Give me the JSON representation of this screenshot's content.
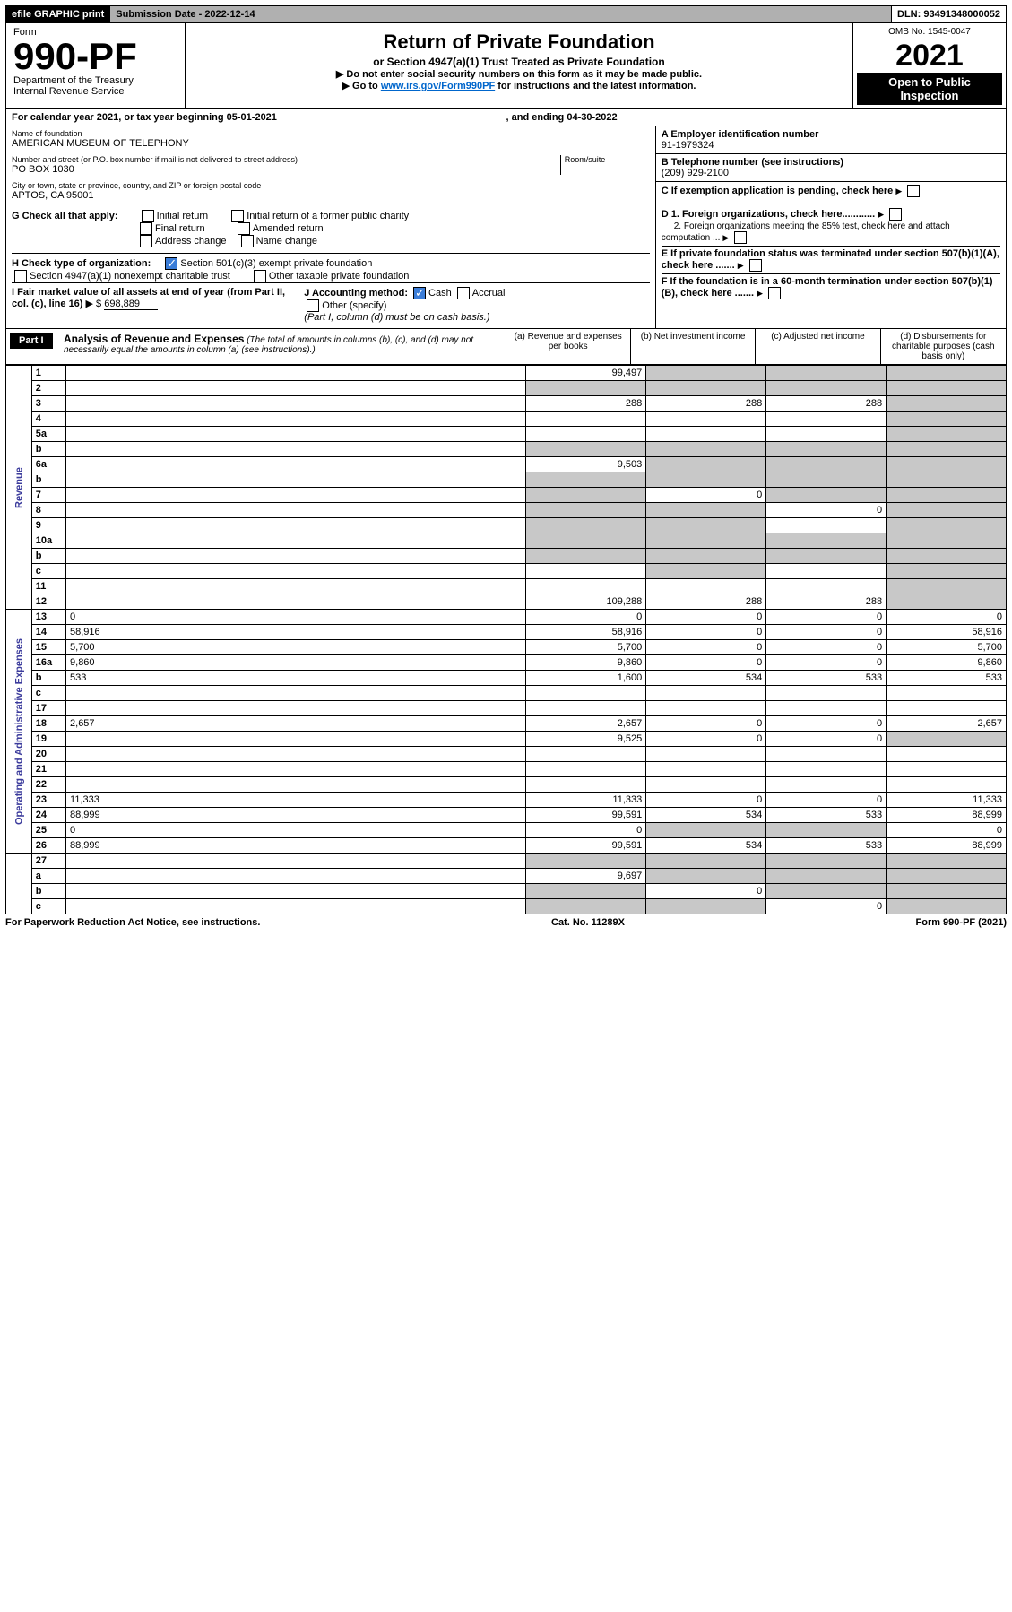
{
  "topbar": {
    "efile": "efile GRAPHIC print",
    "submission_label": "Submission Date - 2022-12-14",
    "dln": "DLN: 93491348000052"
  },
  "header": {
    "form_word": "Form",
    "form_no": "990-PF",
    "dept": "Department of the Treasury",
    "irs": "Internal Revenue Service",
    "title": "Return of Private Foundation",
    "subtitle": "or Section 4947(a)(1) Trust Treated as Private Foundation",
    "note1": "▶ Do not enter social security numbers on this form as it may be made public.",
    "note2_pre": "▶ Go to ",
    "note2_link": "www.irs.gov/Form990PF",
    "note2_post": " for instructions and the latest information.",
    "omb": "OMB No. 1545-0047",
    "year": "2021",
    "open": "Open to Public Inspection"
  },
  "calyear": {
    "text": "For calendar year 2021, or tax year beginning 05-01-2021",
    "ending": ", and ending 04-30-2022"
  },
  "ident": {
    "name_label": "Name of foundation",
    "name": "AMERICAN MUSEUM OF TELEPHONY",
    "addr_label": "Number and street (or P.O. box number if mail is not delivered to street address)",
    "addr": "PO BOX 1030",
    "room_label": "Room/suite",
    "city_label": "City or town, state or province, country, and ZIP or foreign postal code",
    "city": "APTOS, CA  95001",
    "a_label": "A Employer identification number",
    "a_val": "91-1979324",
    "b_label": "B Telephone number (see instructions)",
    "b_val": "(209) 929-2100",
    "c_label": "C If exemption application is pending, check here"
  },
  "g": {
    "label": "G Check all that apply:",
    "opts": [
      "Initial return",
      "Initial return of a former public charity",
      "Final return",
      "Amended return",
      "Address change",
      "Name change"
    ]
  },
  "h": {
    "label": "H Check type of organization:",
    "o1": "Section 501(c)(3) exempt private foundation",
    "o2": "Section 4947(a)(1) nonexempt charitable trust",
    "o3": "Other taxable private foundation"
  },
  "i": {
    "label": "I Fair market value of all assets at end of year (from Part II, col. (c), line 16)",
    "arrow": "▶ $",
    "val": "698,889"
  },
  "j": {
    "label": "J Accounting method:",
    "cash": "Cash",
    "accrual": "Accrual",
    "other": "Other (specify)",
    "note": "(Part I, column (d) must be on cash basis.)"
  },
  "right_notes": {
    "d1": "D 1. Foreign organizations, check here............",
    "d2": "2. Foreign organizations meeting the 85% test, check here and attach computation ...",
    "e": "E  If private foundation status was terminated under section 507(b)(1)(A), check here .......",
    "f": "F  If the foundation is in a 60-month termination under section 507(b)(1)(B), check here ......."
  },
  "part1": {
    "label": "Part I",
    "title": "Analysis of Revenue and Expenses",
    "title_note": "(The total of amounts in columns (b), (c), and (d) may not necessarily equal the amounts in column (a) (see instructions).)",
    "col_a": "(a)   Revenue and expenses per books",
    "col_b": "(b)   Net investment income",
    "col_c": "(c)   Adjusted net income",
    "col_d": "(d)   Disbursements for charitable purposes (cash basis only)"
  },
  "sections": {
    "rev": "Revenue",
    "exp": "Operating and Administrative Expenses"
  },
  "rows": [
    {
      "n": "1",
      "d": "",
      "a": "99,497",
      "b": "",
      "c": "",
      "grey": [
        "b",
        "c",
        "d"
      ]
    },
    {
      "n": "2",
      "d": "",
      "a": "",
      "b": "",
      "c": "",
      "grey": [
        "a",
        "b",
        "c",
        "d"
      ]
    },
    {
      "n": "3",
      "d": "",
      "a": "288",
      "b": "288",
      "c": "288",
      "grey": [
        "d"
      ]
    },
    {
      "n": "4",
      "d": "",
      "a": "",
      "b": "",
      "c": "",
      "grey": [
        "d"
      ]
    },
    {
      "n": "5a",
      "d": "",
      "a": "",
      "b": "",
      "c": "",
      "grey": [
        "d"
      ]
    },
    {
      "n": "b",
      "d": "",
      "a": "",
      "b": "",
      "c": "",
      "grey": [
        "a",
        "b",
        "c",
        "d"
      ]
    },
    {
      "n": "6a",
      "d": "",
      "a": "9,503",
      "b": "",
      "c": "",
      "grey": [
        "b",
        "c",
        "d"
      ]
    },
    {
      "n": "b",
      "d": "",
      "a": "",
      "b": "",
      "c": "",
      "grey": [
        "a",
        "b",
        "c",
        "d"
      ]
    },
    {
      "n": "7",
      "d": "",
      "a": "",
      "b": "0",
      "c": "",
      "grey": [
        "a",
        "c",
        "d"
      ]
    },
    {
      "n": "8",
      "d": "",
      "a": "",
      "b": "",
      "c": "0",
      "grey": [
        "a",
        "b",
        "d"
      ]
    },
    {
      "n": "9",
      "d": "",
      "a": "",
      "b": "",
      "c": "",
      "grey": [
        "a",
        "b",
        "d"
      ]
    },
    {
      "n": "10a",
      "d": "",
      "a": "",
      "b": "",
      "c": "",
      "grey": [
        "a",
        "b",
        "c",
        "d"
      ]
    },
    {
      "n": "b",
      "d": "",
      "a": "",
      "b": "",
      "c": "",
      "grey": [
        "a",
        "b",
        "c",
        "d"
      ]
    },
    {
      "n": "c",
      "d": "",
      "a": "",
      "b": "",
      "c": "",
      "grey": [
        "b",
        "d"
      ]
    },
    {
      "n": "11",
      "d": "",
      "a": "",
      "b": "",
      "c": "",
      "grey": [
        "d"
      ]
    },
    {
      "n": "12",
      "d": "",
      "a": "109,288",
      "b": "288",
      "c": "288",
      "grey": [
        "d"
      ]
    }
  ],
  "exp_rows": [
    {
      "n": "13",
      "d": "0",
      "a": "0",
      "b": "0",
      "c": "0"
    },
    {
      "n": "14",
      "d": "58,916",
      "a": "58,916",
      "b": "0",
      "c": "0"
    },
    {
      "n": "15",
      "d": "5,700",
      "a": "5,700",
      "b": "0",
      "c": "0"
    },
    {
      "n": "16a",
      "d": "9,860",
      "a": "9,860",
      "b": "0",
      "c": "0"
    },
    {
      "n": "b",
      "d": "533",
      "a": "1,600",
      "b": "534",
      "c": "533"
    },
    {
      "n": "c",
      "d": "",
      "a": "",
      "b": "",
      "c": ""
    },
    {
      "n": "17",
      "d": "",
      "a": "",
      "b": "",
      "c": ""
    },
    {
      "n": "18",
      "d": "2,657",
      "a": "2,657",
      "b": "0",
      "c": "0"
    },
    {
      "n": "19",
      "d": "",
      "a": "9,525",
      "b": "0",
      "c": "0",
      "grey": [
        "d"
      ]
    },
    {
      "n": "20",
      "d": "",
      "a": "",
      "b": "",
      "c": ""
    },
    {
      "n": "21",
      "d": "",
      "a": "",
      "b": "",
      "c": ""
    },
    {
      "n": "22",
      "d": "",
      "a": "",
      "b": "",
      "c": ""
    },
    {
      "n": "23",
      "d": "11,333",
      "a": "11,333",
      "b": "0",
      "c": "0"
    },
    {
      "n": "24",
      "d": "88,999",
      "a": "99,591",
      "b": "534",
      "c": "533"
    },
    {
      "n": "25",
      "d": "0",
      "a": "0",
      "b": "",
      "c": "",
      "grey": [
        "b",
        "c"
      ]
    },
    {
      "n": "26",
      "d": "88,999",
      "a": "99,591",
      "b": "534",
      "c": "533"
    }
  ],
  "bottom_rows": [
    {
      "n": "27",
      "d": "",
      "a": "",
      "b": "",
      "c": "",
      "grey": [
        "a",
        "b",
        "c",
        "d"
      ]
    },
    {
      "n": "a",
      "d": "",
      "a": "9,697",
      "b": "",
      "c": "",
      "grey": [
        "b",
        "c",
        "d"
      ]
    },
    {
      "n": "b",
      "d": "",
      "a": "",
      "b": "0",
      "c": "",
      "grey": [
        "a",
        "c",
        "d"
      ]
    },
    {
      "n": "c",
      "d": "",
      "a": "",
      "b": "",
      "c": "0",
      "grey": [
        "a",
        "b",
        "d"
      ]
    }
  ],
  "footer": {
    "left": "For Paperwork Reduction Act Notice, see instructions.",
    "mid": "Cat. No. 11289X",
    "right": "Form 990-PF (2021)"
  },
  "colors": {
    "link": "#0066cc",
    "check": "#3b7dd8",
    "vert": "#3b3b9c",
    "grey": "#c8c8c8"
  }
}
